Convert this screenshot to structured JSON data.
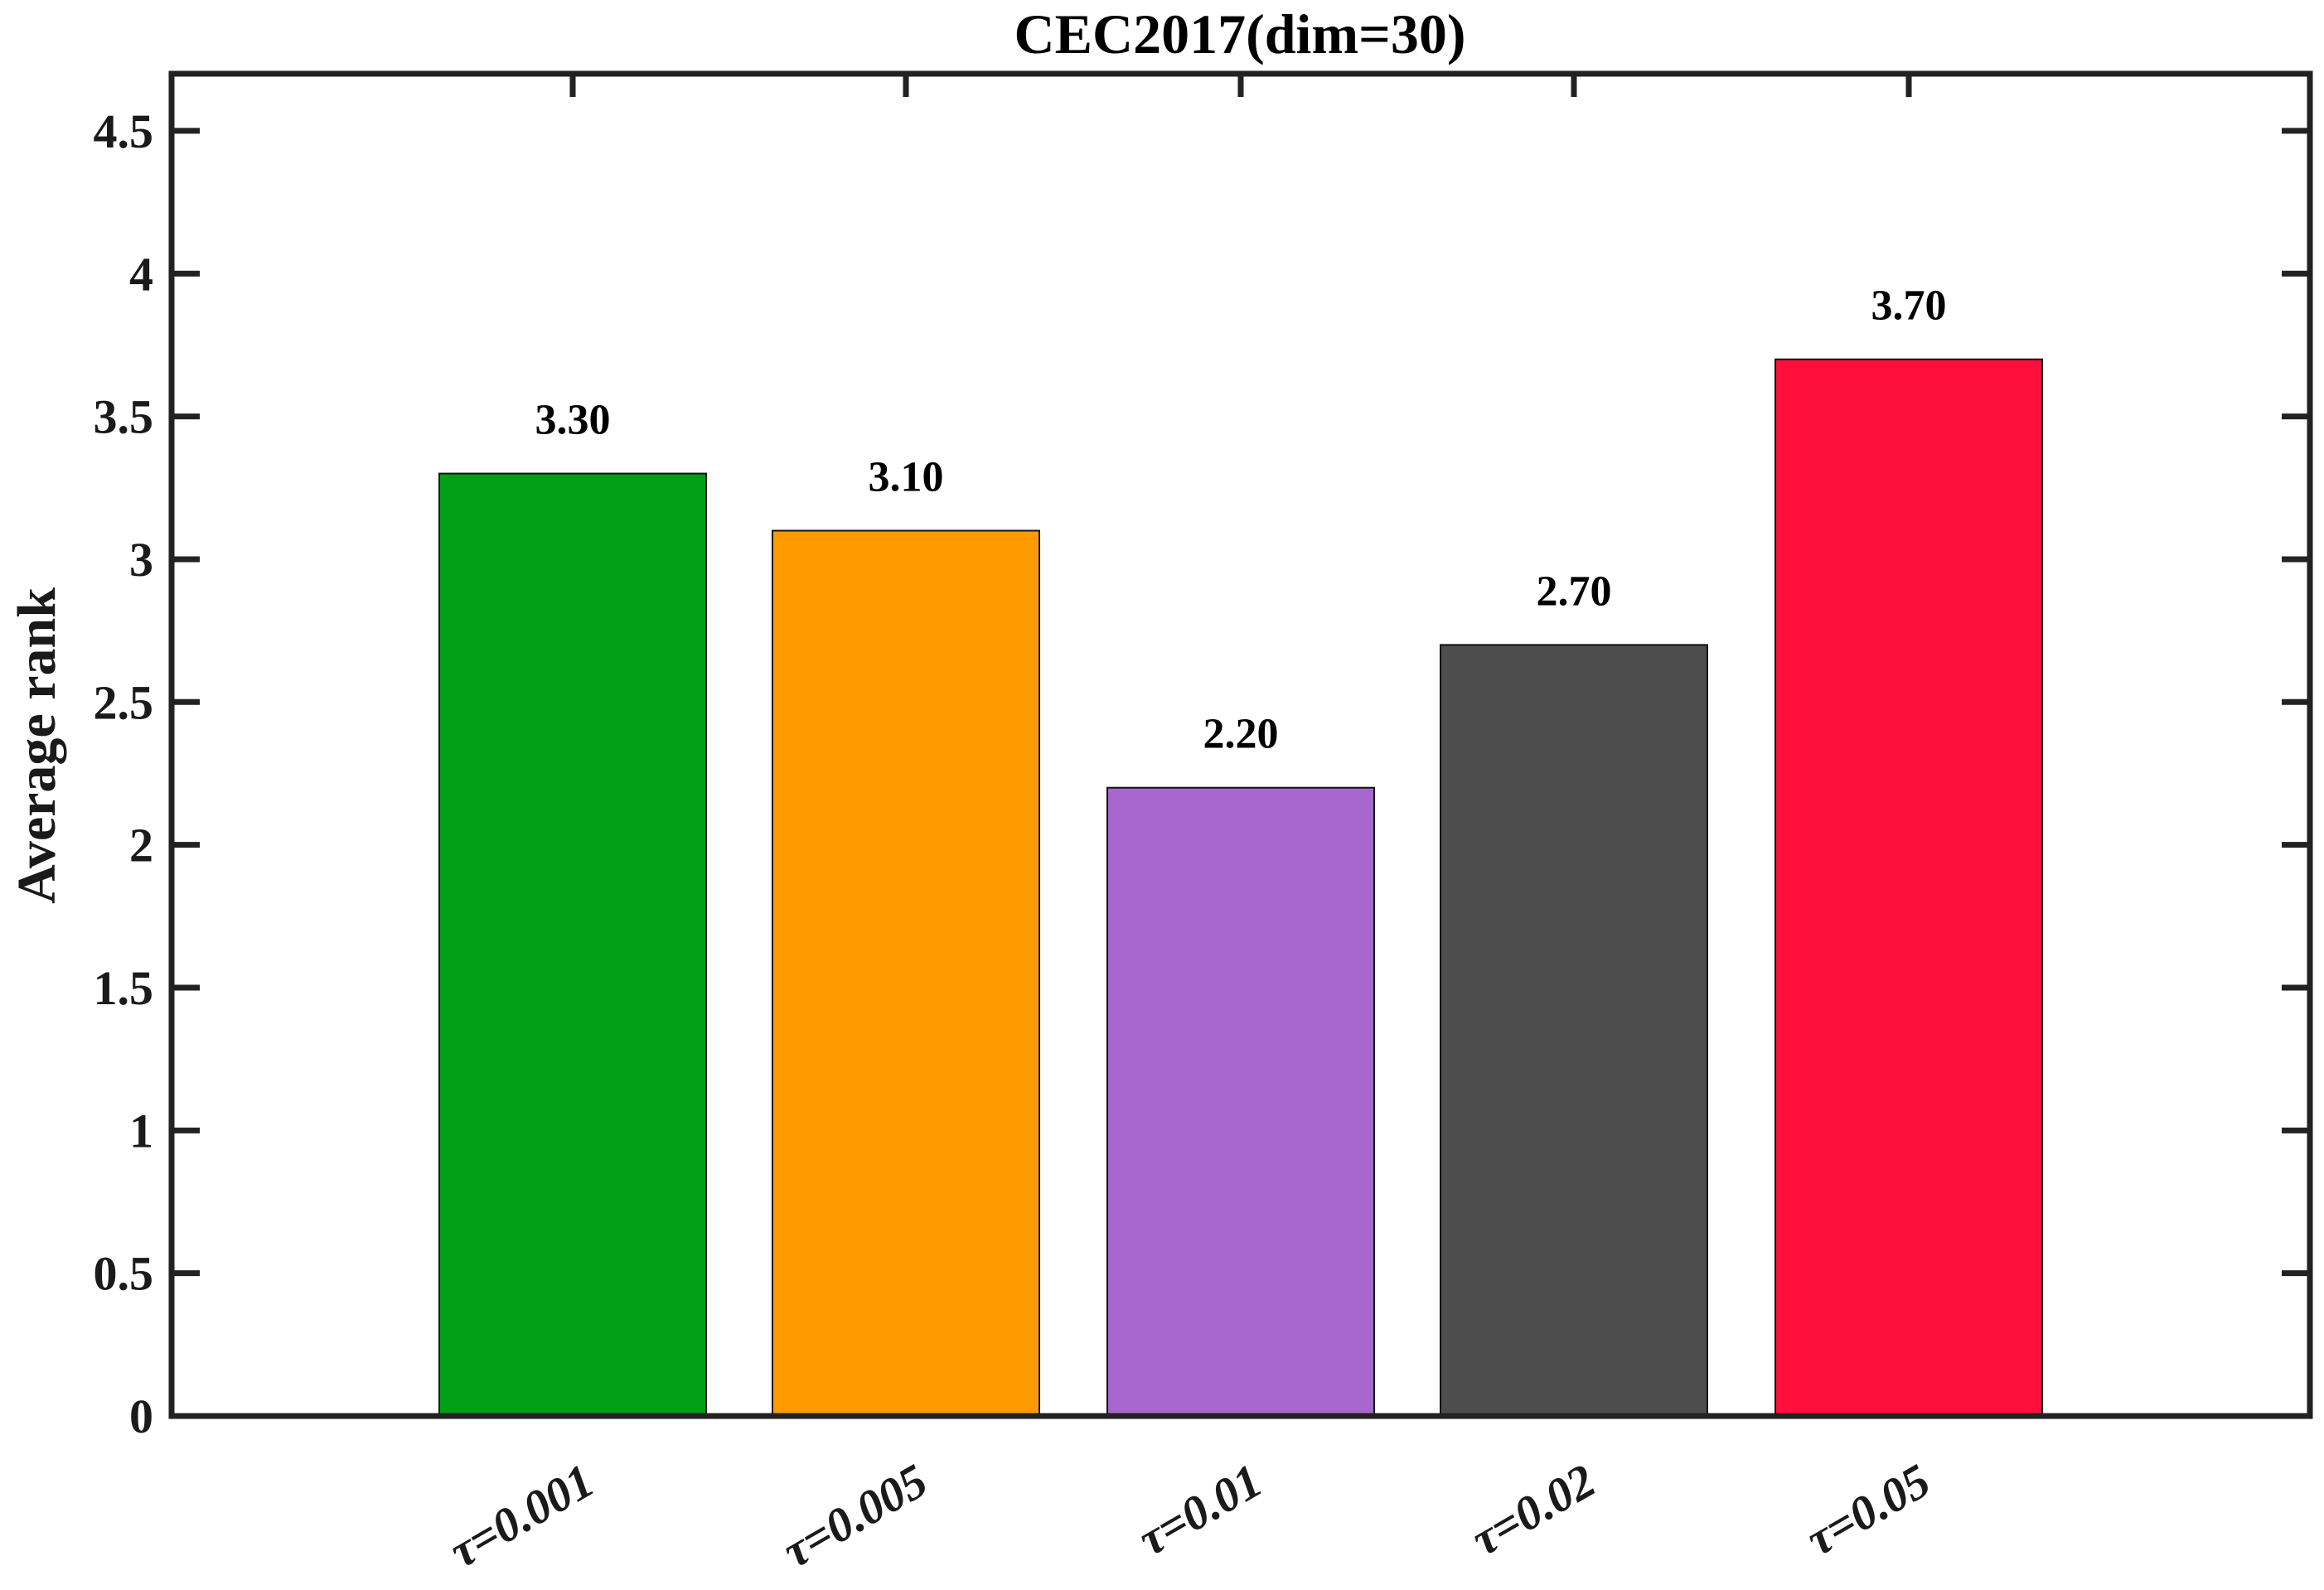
{
  "chart_data": {
    "type": "bar",
    "title": "CEC2017(dim=30)",
    "xlabel": "",
    "ylabel": "Average rank",
    "categories": [
      "τ=0.001",
      "τ=0.005",
      "τ=0.01",
      "τ=0.02",
      "τ=0.05"
    ],
    "values": [
      3.3,
      3.1,
      2.2,
      2.7,
      3.7
    ],
    "value_labels": [
      "3.30",
      "3.10",
      "2.20",
      "2.70",
      "3.70"
    ],
    "colors": [
      "#00A015",
      "#FF9B00",
      "#A867CD",
      "#4D4D4D",
      "#FF0F3C"
    ],
    "ylim": [
      0,
      4.7
    ],
    "yticks": [
      0,
      0.5,
      1,
      1.5,
      2,
      2.5,
      3,
      3.5,
      4,
      4.5
    ],
    "ytick_labels": [
      "0",
      "0.5",
      "1",
      "1.5",
      "2",
      "2.5",
      "3",
      "3.5",
      "4",
      "4.5"
    ],
    "grid": false,
    "legend": null,
    "xtick_rotation": -30
  }
}
